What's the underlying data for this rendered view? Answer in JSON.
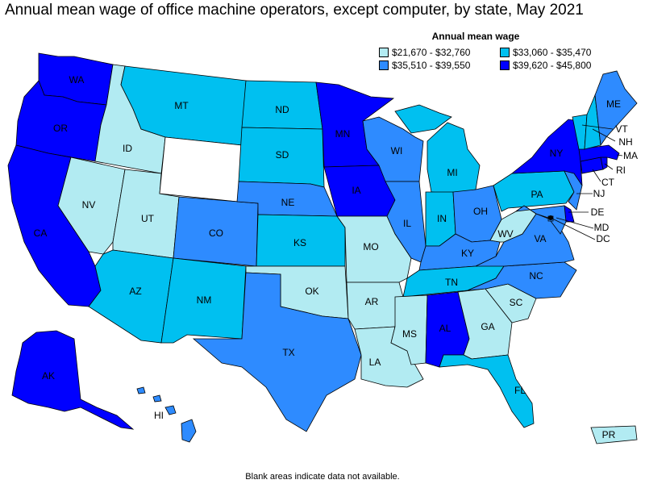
{
  "title": "Annual mean wage of office machine operators, except computer, by state, May 2021",
  "legend": {
    "title": "Annual mean wage",
    "items": [
      {
        "label": "$21,670 - $32,760",
        "color": "#b2ebf2"
      },
      {
        "label": "$33,060 - $35,470",
        "color": "#00c0f0"
      },
      {
        "label": "$35,510 - $39,550",
        "color": "#2e8bff"
      },
      {
        "label": "$39,620 - $45,800",
        "color": "#0000ff"
      }
    ]
  },
  "footnote": "Blank areas indicate data not available.",
  "colors": {
    "c1": "#b2ebf2",
    "c2": "#00c0f0",
    "c3": "#2e8bff",
    "c4": "#0000ff",
    "nodata": "#ffffff",
    "border": "#000000"
  },
  "states": {
    "WA": {
      "label": "WA",
      "class": 4
    },
    "OR": {
      "label": "OR",
      "class": 4
    },
    "CA": {
      "label": "CA",
      "class": 4
    },
    "ID": {
      "label": "ID",
      "class": 1
    },
    "NV": {
      "label": "NV",
      "class": 1
    },
    "UT": {
      "label": "UT",
      "class": 1
    },
    "MT": {
      "label": "MT",
      "class": 2
    },
    "WY": {
      "label": "",
      "class": 0
    },
    "AZ": {
      "label": "AZ",
      "class": 2
    },
    "CO": {
      "label": "CO",
      "class": 3
    },
    "NM": {
      "label": "NM",
      "class": 2
    },
    "ND": {
      "label": "ND",
      "class": 2
    },
    "SD": {
      "label": "SD",
      "class": 2
    },
    "NE": {
      "label": "NE",
      "class": 3
    },
    "KS": {
      "label": "KS",
      "class": 2
    },
    "OK": {
      "label": "OK",
      "class": 1
    },
    "TX": {
      "label": "TX",
      "class": 3
    },
    "MN": {
      "label": "MN",
      "class": 4
    },
    "IA": {
      "label": "IA",
      "class": 4
    },
    "MO": {
      "label": "MO",
      "class": 1
    },
    "AR": {
      "label": "AR",
      "class": 1
    },
    "LA": {
      "label": "LA",
      "class": 1
    },
    "WI": {
      "label": "WI",
      "class": 3
    },
    "IL": {
      "label": "IL",
      "class": 3
    },
    "MS": {
      "label": "MS",
      "class": 1
    },
    "MI": {
      "label": "MI",
      "class": 2
    },
    "IN": {
      "label": "IN",
      "class": 2
    },
    "OH": {
      "label": "OH",
      "class": 3
    },
    "KY": {
      "label": "KY",
      "class": 3
    },
    "TN": {
      "label": "TN",
      "class": 2
    },
    "AL": {
      "label": "AL",
      "class": 4
    },
    "GA": {
      "label": "GA",
      "class": 1
    },
    "FL": {
      "label": "FL",
      "class": 2
    },
    "SC": {
      "label": "SC",
      "class": 1
    },
    "NC": {
      "label": "NC",
      "class": 3
    },
    "VA": {
      "label": "VA",
      "class": 3
    },
    "WV": {
      "label": "WV",
      "class": 1
    },
    "PA": {
      "label": "PA",
      "class": 2
    },
    "NY": {
      "label": "NY",
      "class": 4
    },
    "VT": {
      "label": "VT",
      "class": 2
    },
    "NH": {
      "label": "NH",
      "class": 2
    },
    "ME": {
      "label": "ME",
      "class": 3
    },
    "MA": {
      "label": "MA",
      "class": 4
    },
    "RI": {
      "label": "RI",
      "class": 4
    },
    "CT": {
      "label": "CT",
      "class": 4
    },
    "NJ": {
      "label": "NJ",
      "class": 3
    },
    "DE": {
      "label": "DE",
      "class": 4
    },
    "MD": {
      "label": "MD",
      "class": 3
    },
    "DC": {
      "label": "DC",
      "class": 3
    },
    "AK": {
      "label": "AK",
      "class": 4
    },
    "HI": {
      "label": "HI",
      "class": 3
    },
    "PR": {
      "label": "PR",
      "class": 1
    }
  }
}
